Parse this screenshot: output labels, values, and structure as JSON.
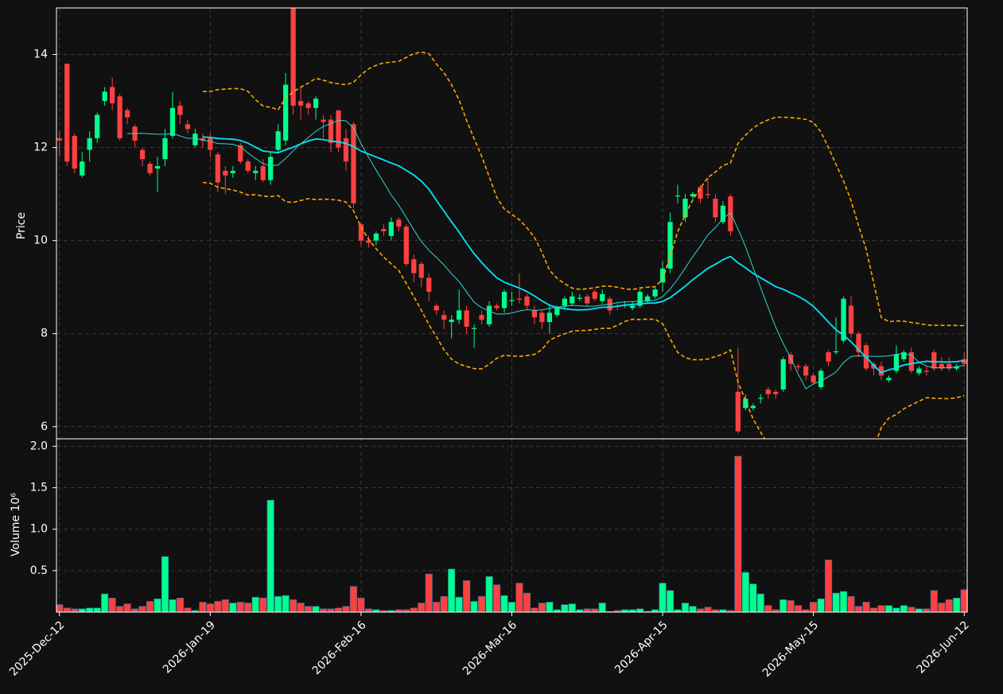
{
  "chart_data": {
    "type": "candlestick",
    "open": [
      12.2,
      13.8,
      12.25,
      11.4,
      11.95,
      12.2,
      13.0,
      13.3,
      13.1,
      12.8,
      12.45,
      11.95,
      11.65,
      11.55,
      11.75,
      12.25,
      12.9,
      12.5,
      12.05,
      12.2,
      12.2,
      11.85,
      11.5,
      11.45,
      12.05,
      11.7,
      11.45,
      11.6,
      11.3,
      11.95,
      12.15,
      15.0,
      13.0,
      12.95,
      12.85,
      12.6,
      12.6,
      12.8,
      12.2,
      12.5,
      10.35,
      10.0,
      10.0,
      10.25,
      10.1,
      10.45,
      10.3,
      9.6,
      9.5,
      9.2,
      8.6,
      8.4,
      8.25,
      8.3,
      8.5,
      8.1,
      8.4,
      8.2,
      8.6,
      8.55,
      8.7,
      8.75,
      8.8,
      8.5,
      8.45,
      8.25,
      8.4,
      8.6,
      8.65,
      8.75,
      8.8,
      8.9,
      8.7,
      8.75,
      8.6,
      8.6,
      8.55,
      8.6,
      8.7,
      8.8,
      9.1,
      9.4,
      10.95,
      10.5,
      10.95,
      11.15,
      11.0,
      10.9,
      10.4,
      10.95,
      6.75,
      6.4,
      6.4,
      6.6,
      6.8,
      6.75,
      6.8,
      7.55,
      7.3,
      7.3,
      7.1,
      6.85,
      7.6,
      7.6,
      7.85,
      8.6,
      8.0,
      7.75,
      7.35,
      7.3,
      7.0,
      7.2,
      7.45,
      7.6,
      7.15,
      7.2,
      7.6,
      7.35,
      7.35,
      7.25,
      7.45
    ],
    "high": [
      12.35,
      13.8,
      12.3,
      11.9,
      12.35,
      12.75,
      13.3,
      13.5,
      13.15,
      12.85,
      12.5,
      12.0,
      11.7,
      11.8,
      12.4,
      13.2,
      13.0,
      12.6,
      12.4,
      12.3,
      12.3,
      11.9,
      11.6,
      11.6,
      12.1,
      11.75,
      11.6,
      11.75,
      11.9,
      12.5,
      13.6,
      15.0,
      13.3,
      13.0,
      13.1,
      12.7,
      12.7,
      12.8,
      12.4,
      12.55,
      10.4,
      10.1,
      10.2,
      10.35,
      10.5,
      10.5,
      10.35,
      9.7,
      9.55,
      9.3,
      8.65,
      8.5,
      8.4,
      8.95,
      8.6,
      8.2,
      8.5,
      8.7,
      8.65,
      8.95,
      8.9,
      9.3,
      8.85,
      8.6,
      8.5,
      8.6,
      8.6,
      8.8,
      8.9,
      8.85,
      8.85,
      8.95,
      8.95,
      8.8,
      8.65,
      8.7,
      8.7,
      9.0,
      8.85,
      9.0,
      9.55,
      10.6,
      11.2,
      11.0,
      11.05,
      11.2,
      11.35,
      11.0,
      10.85,
      11.0,
      7.7,
      6.7,
      6.5,
      6.7,
      6.85,
      6.8,
      7.5,
      7.6,
      7.35,
      7.35,
      7.15,
      7.25,
      7.65,
      8.35,
      8.8,
      8.8,
      8.05,
      7.8,
      7.4,
      7.4,
      7.1,
      7.75,
      7.65,
      7.7,
      7.3,
      7.3,
      7.65,
      7.5,
      7.5,
      7.35,
      7.6
    ],
    "low": [
      11.8,
      11.6,
      11.45,
      11.35,
      11.7,
      12.1,
      12.9,
      12.8,
      12.15,
      12.5,
      12.0,
      11.6,
      11.4,
      11.05,
      11.6,
      12.2,
      12.5,
      12.3,
      12.0,
      12.0,
      11.8,
      11.05,
      11.0,
      11.35,
      11.65,
      11.45,
      11.3,
      11.25,
      11.2,
      11.9,
      12.05,
      12.7,
      12.6,
      12.7,
      12.6,
      12.2,
      11.9,
      11.9,
      11.5,
      10.7,
      9.9,
      9.85,
      9.9,
      10.1,
      10.0,
      10.2,
      9.45,
      9.1,
      9.0,
      8.7,
      8.4,
      8.1,
      7.9,
      8.2,
      8.0,
      7.7,
      8.2,
      8.15,
      8.5,
      8.45,
      8.6,
      8.65,
      8.5,
      8.2,
      8.1,
      8.0,
      8.35,
      8.55,
      8.6,
      8.7,
      8.6,
      8.7,
      8.65,
      8.4,
      8.5,
      8.55,
      8.5,
      8.55,
      8.65,
      8.75,
      8.9,
      9.3,
      10.8,
      10.4,
      10.9,
      10.8,
      10.9,
      10.4,
      10.35,
      10.1,
      5.85,
      6.35,
      6.35,
      6.5,
      6.6,
      6.6,
      6.75,
      7.2,
      7.2,
      7.0,
      6.9,
      6.8,
      7.3,
      7.55,
      7.8,
      7.9,
      7.5,
      7.2,
      7.1,
      7.0,
      6.95,
      7.15,
      7.4,
      7.15,
      7.1,
      7.1,
      7.2,
      7.2,
      7.2,
      7.2,
      7.3
    ],
    "close": [
      12.15,
      11.7,
      11.55,
      11.7,
      12.2,
      12.7,
      13.2,
      12.95,
      12.2,
      12.65,
      12.15,
      11.75,
      11.45,
      11.6,
      12.2,
      12.85,
      12.7,
      12.4,
      12.3,
      12.15,
      11.95,
      11.25,
      11.4,
      11.5,
      11.7,
      11.5,
      11.5,
      11.3,
      11.8,
      12.35,
      13.35,
      12.9,
      12.9,
      12.85,
      13.05,
      12.55,
      12.1,
      12.0,
      11.7,
      10.8,
      10.0,
      9.95,
      10.15,
      10.2,
      10.4,
      10.3,
      9.5,
      9.3,
      9.2,
      8.9,
      8.5,
      8.3,
      8.3,
      8.5,
      8.15,
      8.12,
      8.3,
      8.6,
      8.55,
      8.9,
      8.72,
      8.73,
      8.6,
      8.35,
      8.25,
      8.45,
      8.55,
      8.75,
      8.8,
      8.77,
      8.65,
      8.75,
      8.85,
      8.5,
      8.58,
      8.62,
      8.6,
      8.9,
      8.8,
      8.95,
      9.4,
      10.4,
      10.97,
      10.9,
      11.0,
      10.9,
      10.98,
      10.5,
      10.75,
      10.2,
      5.9,
      6.6,
      6.45,
      6.62,
      6.7,
      6.7,
      7.45,
      7.35,
      7.28,
      7.1,
      6.95,
      7.2,
      7.4,
      7.62,
      8.75,
      8.0,
      7.6,
      7.25,
      7.25,
      7.1,
      7.05,
      7.55,
      7.6,
      7.2,
      7.25,
      7.18,
      7.25,
      7.25,
      7.25,
      7.3,
      7.35
    ],
    "volume": [
      0.09,
      0.05,
      0.04,
      0.04,
      0.05,
      0.05,
      0.22,
      0.17,
      0.07,
      0.1,
      0.04,
      0.07,
      0.13,
      0.16,
      0.67,
      0.15,
      0.17,
      0.05,
      0.02,
      0.12,
      0.1,
      0.13,
      0.15,
      0.11,
      0.12,
      0.11,
      0.18,
      0.17,
      1.35,
      0.19,
      0.2,
      0.15,
      0.11,
      0.07,
      0.07,
      0.04,
      0.04,
      0.05,
      0.07,
      0.31,
      0.17,
      0.04,
      0.03,
      0.02,
      0.02,
      0.03,
      0.03,
      0.05,
      0.11,
      0.46,
      0.12,
      0.19,
      0.52,
      0.18,
      0.38,
      0.13,
      0.19,
      0.43,
      0.33,
      0.2,
      0.12,
      0.35,
      0.23,
      0.05,
      0.11,
      0.12,
      0.03,
      0.09,
      0.1,
      0.03,
      0.04,
      0.04,
      0.11,
      0.01,
      0.02,
      0.03,
      0.03,
      0.04,
      0.01,
      0.03,
      0.35,
      0.26,
      0.03,
      0.11,
      0.07,
      0.04,
      0.06,
      0.03,
      0.03,
      0.02,
      1.88,
      0.48,
      0.34,
      0.22,
      0.08,
      0.03,
      0.15,
      0.14,
      0.08,
      0.03,
      0.12,
      0.16,
      0.63,
      0.23,
      0.25,
      0.19,
      0.07,
      0.12,
      0.05,
      0.08,
      0.08,
      0.05,
      0.08,
      0.06,
      0.04,
      0.04,
      0.26,
      0.11,
      0.15,
      0.17,
      0.27
    ],
    "up_color": "#00ff8c",
    "down_color": "#ff4040",
    "mav": [
      10,
      20
    ],
    "mav_colors": [
      "#33d6d0",
      "#00e5ff"
    ],
    "bollinger": {
      "period": 20,
      "std": 2,
      "color": "#ffa500"
    },
    "ylabel": "Price",
    "ylim": [
      5.74,
      15.0
    ],
    "yticks": [
      6,
      8,
      10,
      12,
      14
    ],
    "volume_label": "Volume  10⁶",
    "volume_lim": [
      0,
      2.09
    ],
    "volume_ticks": [
      0.5,
      {
        "value": 1.0,
        "label": "1.0"
      },
      1.5,
      {
        "value": 2.0,
        "label": "2.0"
      }
    ],
    "xlim": [
      -0.4,
      120.4
    ],
    "xticks": [
      {
        "value": 0,
        "label": "2025-Dec-12"
      },
      {
        "value": 20,
        "label": "2026-Jan-19"
      },
      {
        "value": 40,
        "label": "2026-Feb-16"
      },
      {
        "value": 60,
        "label": "2026-Mar-16"
      },
      {
        "value": 80,
        "label": "2026-Apr-15"
      },
      {
        "value": 100,
        "label": "2026-May-15"
      },
      {
        "value": 120,
        "label": "2026-Jun-12"
      }
    ],
    "grid": true
  }
}
